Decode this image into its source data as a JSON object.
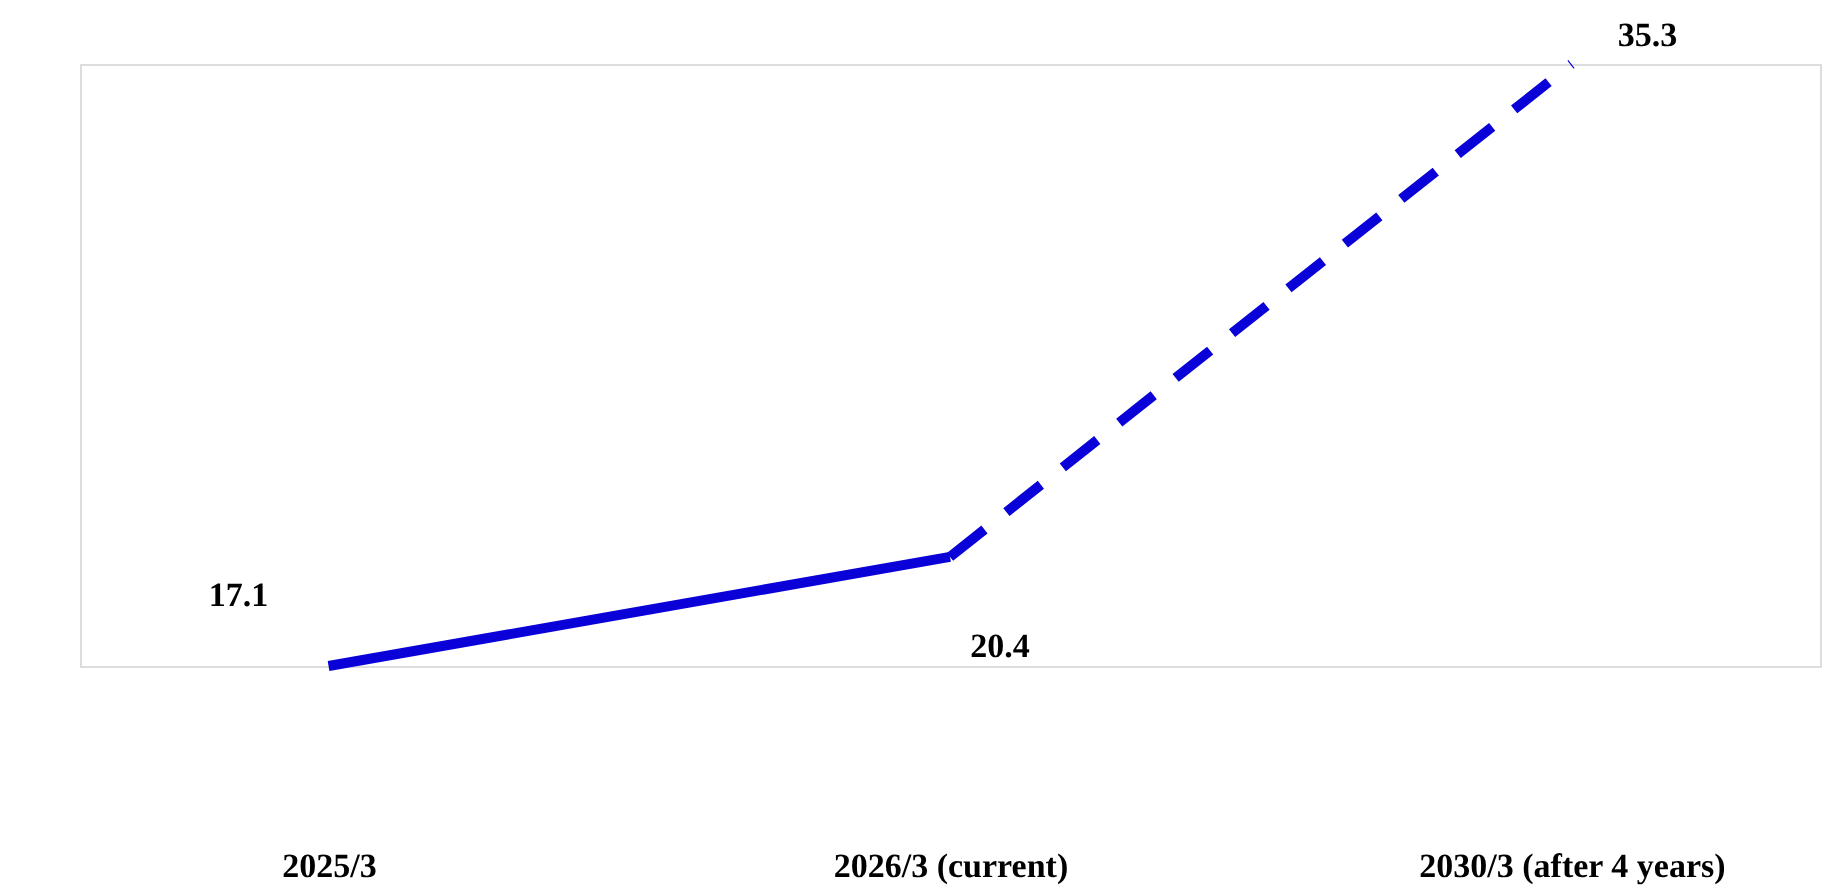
{
  "chart_data": {
    "type": "line",
    "categories": [
      "2025/3",
      "2026/3 (current)",
      "2030/3 (after 4 years)"
    ],
    "series": [
      {
        "color": "#0a00d8",
        "line_style": "solid",
        "values": [
          17.1,
          20.4,
          null
        ],
        "value_labels": [
          "17.1",
          "20.4",
          null
        ]
      },
      {
        "color": "#0a00d8",
        "line_style": "dashed",
        "values": [
          null,
          20.4,
          35.3
        ],
        "value_labels": [
          null,
          null,
          "35.3"
        ]
      }
    ],
    "grid": false,
    "marker": "none"
  }
}
